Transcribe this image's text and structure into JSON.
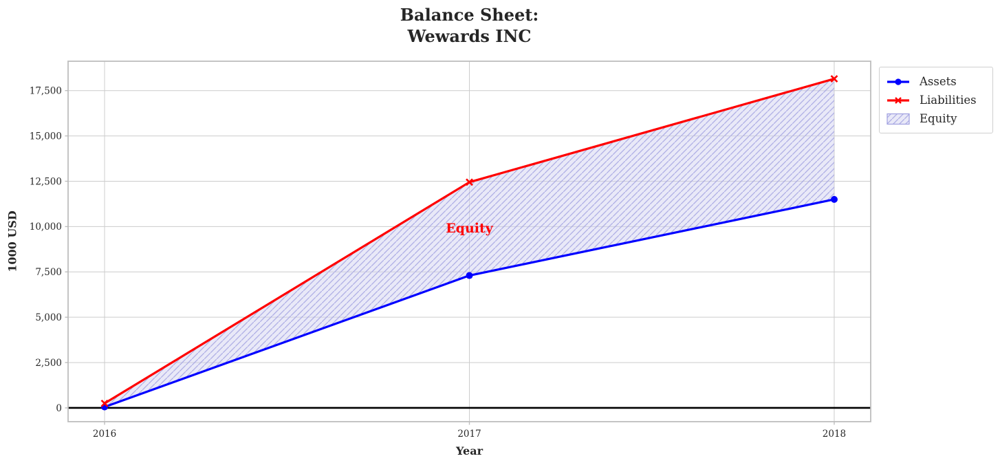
{
  "figure": {
    "background": "#ffffff",
    "text_color": "#262626"
  },
  "chart_data": {
    "type": "line",
    "title_lines": [
      "Balance Sheet:",
      "Wewards INC"
    ],
    "xlabel": "Year",
    "ylabel": "1000 USD",
    "x": [
      2016,
      2017,
      2018
    ],
    "xtick_labels": [
      "2016",
      "2017",
      "2018"
    ],
    "yticks": [
      0,
      2500,
      5000,
      7500,
      10000,
      12500,
      15000,
      17500
    ],
    "ytick_labels": [
      "0",
      "2,500",
      "5,000",
      "7,500",
      "10,000",
      "12,500",
      "15,000",
      "17,500"
    ],
    "xlim": [
      2015.9,
      2018.1
    ],
    "ylim": [
      -760,
      19120
    ],
    "grid": true,
    "grid_color": "#cccccc",
    "spine_color": "#bdbdbd",
    "zero_line_color": "#000000",
    "series": [
      {
        "name": "Assets",
        "color": "#0000ff",
        "marker": "circle",
        "values": [
          50,
          7300,
          11500
        ]
      },
      {
        "name": "Liabilities",
        "color": "#ff0000",
        "marker": "x",
        "values": [
          250,
          12450,
          18150
        ]
      }
    ],
    "fill": {
      "name": "Equity",
      "between": [
        "Assets",
        "Liabilities"
      ],
      "facecolor": "#cfcfef",
      "face_opacity": 0.45,
      "hatch": "//",
      "hatch_color": "#9f9fe0",
      "hatch_opacity": 0.8
    },
    "annotation": {
      "text": "Equity",
      "x": 2017,
      "y": 9900,
      "color": "#ff0000"
    },
    "legend": {
      "position": "outside-top-right",
      "items": [
        "Assets",
        "Liabilities",
        "Equity"
      ]
    }
  }
}
